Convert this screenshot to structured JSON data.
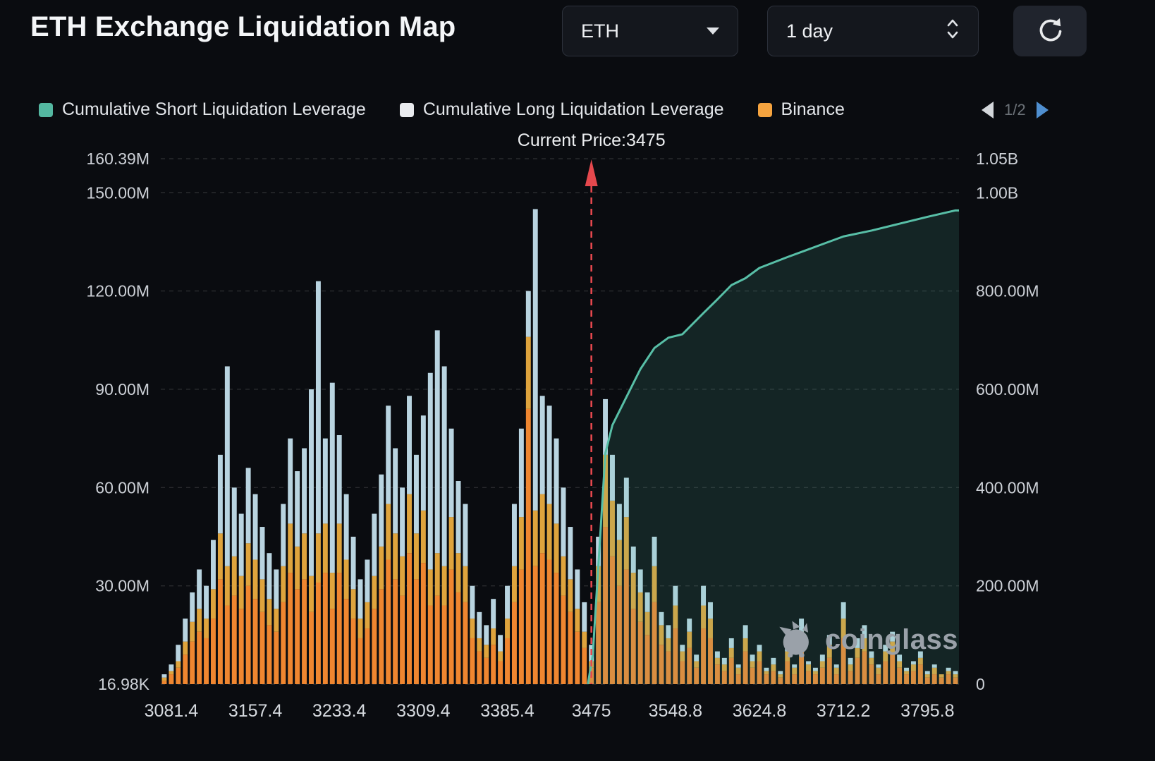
{
  "header": {
    "title": "ETH Exchange Liquidation Map",
    "symbol_select": {
      "value": "ETH"
    },
    "period_select": {
      "value": "1 day"
    }
  },
  "legend": {
    "items": [
      {
        "label": "Cumulative Short Liquidation Leverage",
        "color": "#54b8a1"
      },
      {
        "label": "Cumulative Long Liquidation Leverage",
        "color": "#e9ebee"
      },
      {
        "label": "Binance",
        "color": "#f6a43f"
      }
    ],
    "pager": {
      "page": "1/2"
    }
  },
  "watermark": {
    "text": "coinglass"
  },
  "chart_data": {
    "type": "bar",
    "title": "ETH Exchange Liquidation Map",
    "current_price": 3475,
    "current_price_label": "Current Price:3475",
    "current_price_line_color": "#e5484d",
    "x_axis": {
      "bar_count": 114,
      "tick_labels": [
        "3081.4",
        "3157.4",
        "3233.4",
        "3309.4",
        "3385.4",
        "3475",
        "3548.8",
        "3624.8",
        "3712.2",
        "3795.8"
      ],
      "tick_bar_indices": [
        1,
        13,
        25,
        37,
        49,
        61,
        73,
        85,
        97,
        109
      ]
    },
    "left_axis": {
      "labels": [
        "160.39M",
        "150.00M",
        "120.00M",
        "90.00M",
        "60.00M",
        "30.00M",
        "16.98K"
      ],
      "values_m": [
        160.39,
        150,
        120,
        90,
        60,
        30,
        0
      ],
      "max_m": 160.39
    },
    "right_axis": {
      "labels": [
        "1.05B",
        "1.00B",
        "800.00M",
        "600.00M",
        "400.00M",
        "200.00M",
        "0"
      ],
      "values_m": [
        1050,
        1000,
        800,
        600,
        400,
        200,
        0
      ],
      "max_m": 1050
    },
    "series": [
      {
        "name": "Binance",
        "color": "#ef8630",
        "values_m": [
          1,
          3,
          5,
          9,
          13,
          16,
          14,
          20,
          32,
          24,
          27,
          23,
          30,
          26,
          22,
          18,
          16,
          25,
          34,
          29,
          32,
          22,
          31,
          34,
          23,
          34,
          26,
          20,
          14,
          17,
          23,
          29,
          38,
          32,
          27,
          40,
          32,
          37,
          24,
          27,
          24,
          35,
          28,
          25,
          14,
          10,
          8,
          12,
          7,
          14,
          25,
          35,
          84,
          36,
          40,
          38,
          34,
          27,
          22,
          16,
          11,
          5,
          25,
          48,
          39,
          30,
          35,
          23,
          19,
          15,
          25,
          12,
          10,
          17,
          7,
          11,
          5,
          17,
          14,
          6,
          4,
          8,
          3,
          10,
          5,
          7,
          3,
          4,
          2,
          7,
          3,
          11,
          4,
          3,
          5,
          8,
          3,
          14,
          4,
          8,
          10,
          6,
          3,
          7,
          9,
          5,
          3,
          4,
          6,
          2,
          3,
          2,
          3,
          2
        ]
      },
      {
        "name": "exchange-2-yellow",
        "color": "#dfa43d",
        "values_m": [
          1,
          1,
          2,
          4,
          6,
          7,
          6,
          9,
          14,
          12,
          12,
          10,
          13,
          12,
          10,
          8,
          7,
          11,
          15,
          13,
          14,
          11,
          15,
          15,
          11,
          15,
          12,
          9,
          6,
          8,
          10,
          13,
          17,
          14,
          12,
          18,
          14,
          16,
          11,
          13,
          12,
          16,
          12,
          11,
          6,
          4,
          4,
          5,
          3,
          6,
          11,
          16,
          22,
          17,
          18,
          17,
          15,
          12,
          10,
          7,
          5,
          2,
          11,
          22,
          17,
          14,
          16,
          11,
          9,
          7,
          11,
          6,
          4,
          7,
          3,
          5,
          2,
          7,
          6,
          2,
          2,
          3,
          2,
          4,
          2,
          3,
          1,
          2,
          1,
          3,
          2,
          5,
          2,
          1,
          2,
          4,
          2,
          6,
          2,
          3,
          4,
          2,
          2,
          3,
          4,
          2,
          1,
          2,
          2,
          1,
          2,
          1,
          1,
          1
        ]
      },
      {
        "name": "exchange-3-lightblue",
        "color": "#b9d4e0",
        "values_m": [
          1,
          2,
          5,
          7,
          9,
          12,
          10,
          15,
          24,
          61,
          21,
          19,
          23,
          20,
          16,
          14,
          12,
          19,
          26,
          23,
          26,
          57,
          77,
          26,
          58,
          27,
          20,
          16,
          12,
          13,
          19,
          22,
          30,
          26,
          21,
          30,
          24,
          29,
          60,
          68,
          61,
          27,
          22,
          19,
          10,
          8,
          6,
          9,
          5,
          10,
          19,
          27,
          14,
          92,
          30,
          30,
          26,
          21,
          16,
          12,
          9,
          5,
          9,
          17,
          14,
          11,
          12,
          8,
          7,
          6,
          9,
          4,
          4,
          6,
          2,
          4,
          2,
          6,
          5,
          2,
          2,
          3,
          1,
          4,
          2,
          2,
          1,
          2,
          1,
          2,
          1,
          4,
          1,
          1,
          2,
          3,
          1,
          5,
          2,
          3,
          4,
          2,
          1,
          2,
          3,
          2,
          1,
          1,
          2,
          1,
          1,
          0,
          1,
          1
        ]
      }
    ],
    "cumulative_short_line": {
      "name": "Cumulative Short Liquidation Leverage",
      "color": "#58bfa7",
      "area_fill": "rgba(88,191,167,0.14)",
      "bar_indices": [
        60.5,
        61.2,
        62,
        63,
        64,
        66,
        68,
        70,
        72,
        74,
        77,
        79,
        81,
        83,
        85,
        89,
        93,
        97,
        101,
        105,
        109,
        113
      ],
      "values_m": [
        0,
        60,
        242,
        470,
        527,
        584,
        641,
        684,
        705,
        712,
        755,
        783,
        812,
        826,
        847,
        869,
        890,
        911,
        923,
        937,
        951,
        964
      ]
    }
  }
}
